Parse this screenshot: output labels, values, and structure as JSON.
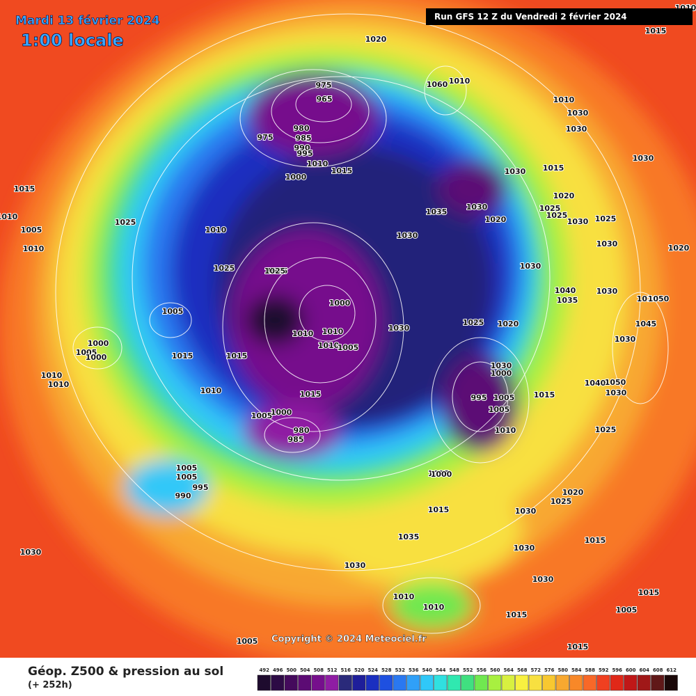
{
  "header": {
    "date": "Mardi 13 février 2024",
    "time": "1:00 locale",
    "run": "Run GFS 12 Z du Vendredi 2 février 2024"
  },
  "footer": {
    "title": "Géop. Z500 & pression au sol",
    "lead": "(+ 252h)",
    "copyright": "Copyright © 2024 Meteociel.fr"
  },
  "scale": {
    "values": [
      492,
      496,
      500,
      504,
      508,
      512,
      516,
      520,
      524,
      528,
      532,
      536,
      540,
      544,
      548,
      552,
      556,
      560,
      564,
      568,
      572,
      576,
      580,
      584,
      588,
      592,
      596,
      600,
      604,
      608,
      612
    ],
    "colors": [
      "#1e0b2e",
      "#2d0b45",
      "#440a5c",
      "#5c0b74",
      "#760f8c",
      "#8f1da3",
      "#2a2a7a",
      "#1e1e9a",
      "#1a2fc0",
      "#1e50e0",
      "#2a78f0",
      "#30a0f8",
      "#30c8f8",
      "#30e0e0",
      "#30e8b0",
      "#40e080",
      "#70e850",
      "#a8f040",
      "#d8f040",
      "#f8f040",
      "#f8e040",
      "#f8c830",
      "#f8a830",
      "#f88828",
      "#f86828",
      "#f04020",
      "#e02818",
      "#c01818",
      "#a01818",
      "#601818",
      "#1a0808"
    ]
  },
  "pressure_labels": [
    "1020",
    "1015",
    "975",
    "965",
    "975",
    "980",
    "985",
    "990",
    "995",
    "1010",
    "1015",
    "1000",
    "1010",
    "1060",
    "1010",
    "1030",
    "1030",
    "1030",
    "1015",
    "1030",
    "1020",
    "1015",
    "1025",
    "1010",
    "1005",
    "1010",
    "1025",
    "1010",
    "1025",
    "1025",
    "1030",
    "1035",
    "1030",
    "1020",
    "1025",
    "1030",
    "1025",
    "1020",
    "1030",
    "1030",
    "1040",
    "1035",
    "1030",
    "1025",
    "1020",
    "1000",
    "1010",
    "1005",
    "1015",
    "1000",
    "1005",
    "1000",
    "1010",
    "1010",
    "1015",
    "1015",
    "1010",
    "1010",
    "1010",
    "1005",
    "1000",
    "1025",
    "1020",
    "1030",
    "1035",
    "1030",
    "1000",
    "995",
    "1005",
    "1005",
    "1010",
    "1015",
    "1020",
    "1050",
    "1045",
    "1030",
    "1040",
    "1050",
    "1030",
    "1025",
    "1015",
    "1010",
    "1005",
    "980",
    "985",
    "1005",
    "995",
    "990",
    "1000",
    "1030",
    "1015",
    "1030",
    "1035",
    "1030",
    "1030",
    "1020",
    "1025",
    "1030",
    "1015",
    "1010",
    "1005",
    "1015",
    "1005",
    "1010",
    "1015",
    "1005"
  ]
}
